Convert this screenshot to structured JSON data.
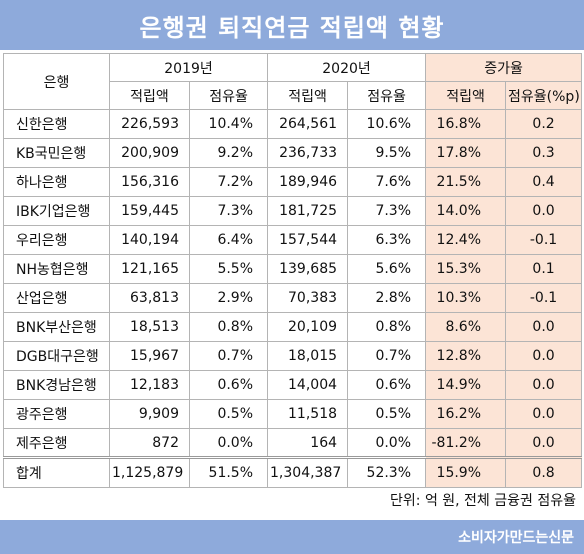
{
  "title": "은행권 퇴직연금 적립액 현황",
  "header": {
    "bank": "은행",
    "year1": "2019년",
    "year2": "2020년",
    "growth": "증가율",
    "reserve": "적립액",
    "share": "점유율",
    "growth_reserve": "적립액",
    "growth_share": "점유율(%p)"
  },
  "rows": [
    {
      "bank": "신한은행",
      "r2019": "226,593",
      "s2019": "10.4%",
      "r2020": "264,561",
      "s2020": "10.6%",
      "g_reserve": "16.8%",
      "g_share": "0.2"
    },
    {
      "bank": "KB국민은행",
      "r2019": "200,909",
      "s2019": "9.2%",
      "r2020": "236,733",
      "s2020": "9.5%",
      "g_reserve": "17.8%",
      "g_share": "0.3"
    },
    {
      "bank": "하나은행",
      "r2019": "156,316",
      "s2019": "7.2%",
      "r2020": "189,946",
      "s2020": "7.6%",
      "g_reserve": "21.5%",
      "g_share": "0.4"
    },
    {
      "bank": "IBK기업은행",
      "r2019": "159,445",
      "s2019": "7.3%",
      "r2020": "181,725",
      "s2020": "7.3%",
      "g_reserve": "14.0%",
      "g_share": "0.0"
    },
    {
      "bank": "우리은행",
      "r2019": "140,194",
      "s2019": "6.4%",
      "r2020": "157,544",
      "s2020": "6.3%",
      "g_reserve": "12.4%",
      "g_share": "-0.1"
    },
    {
      "bank": "NH농협은행",
      "r2019": "121,165",
      "s2019": "5.5%",
      "r2020": "139,685",
      "s2020": "5.6%",
      "g_reserve": "15.3%",
      "g_share": "0.1"
    },
    {
      "bank": "산업은행",
      "r2019": "63,813",
      "s2019": "2.9%",
      "r2020": "70,383",
      "s2020": "2.8%",
      "g_reserve": "10.3%",
      "g_share": "-0.1"
    },
    {
      "bank": "BNK부산은행",
      "r2019": "18,513",
      "s2019": "0.8%",
      "r2020": "20,109",
      "s2020": "0.8%",
      "g_reserve": "8.6%",
      "g_share": "0.0"
    },
    {
      "bank": "DGB대구은행",
      "r2019": "15,967",
      "s2019": "0.7%",
      "r2020": "18,015",
      "s2020": "0.7%",
      "g_reserve": "12.8%",
      "g_share": "0.0"
    },
    {
      "bank": "BNK경남은행",
      "r2019": "12,183",
      "s2019": "0.6%",
      "r2020": "14,004",
      "s2020": "0.6%",
      "g_reserve": "14.9%",
      "g_share": "0.0"
    },
    {
      "bank": "광주은행",
      "r2019": "9,909",
      "s2019": "0.5%",
      "r2020": "11,518",
      "s2020": "0.5%",
      "g_reserve": "16.2%",
      "g_share": "0.0"
    },
    {
      "bank": "제주은행",
      "r2019": "872",
      "s2019": "0.0%",
      "r2020": "164",
      "s2020": "0.0%",
      "g_reserve": "-81.2%",
      "g_share": "0.0"
    }
  ],
  "total": {
    "bank": "합계",
    "r2019": "1,125,879",
    "s2019": "51.5%",
    "r2020": "1,304,387",
    "s2020": "52.3%",
    "g_reserve": "15.9%",
    "g_share": "0.8"
  },
  "unit_note": "단위: 억 원, 전체 금융권 점유율",
  "footer": "소비자가만드는신문",
  "colors": {
    "title_bar": "#8eaadb",
    "growth_highlight": "#fce4d6",
    "border": "#b4b4b4"
  }
}
